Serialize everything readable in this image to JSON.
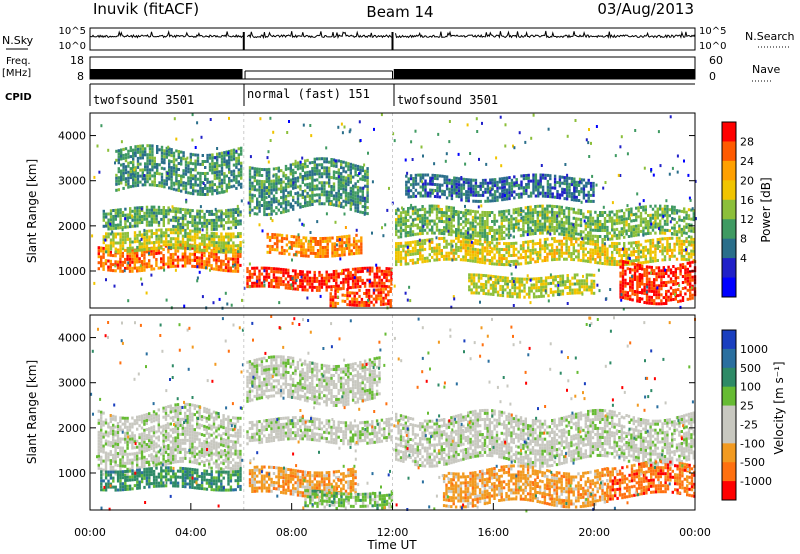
{
  "header": {
    "station": "Inuvik (fitACF)",
    "beam": "Beam 14",
    "date": "03/Aug/2013"
  },
  "chart_data": [
    {
      "type": "line",
      "name": "N.Sky",
      "left_label": "N.Sky",
      "right_label": "N.Search",
      "left_ticks": [
        "10^5",
        "10^0"
      ],
      "right_ticks": [
        "10^5",
        "10^0"
      ],
      "gaps_hours": [
        [
          6.1,
          6.15
        ],
        [
          12.0,
          12.05
        ]
      ]
    },
    {
      "type": "line",
      "name": "Freq",
      "left_label_top": "Freq.",
      "left_label_bottom": "[MHz]",
      "right_label": "Nave",
      "left_ticks": [
        18,
        8
      ],
      "right_ticks": [
        60,
        0
      ],
      "gaps_hours": [
        [
          6.1,
          6.15
        ],
        [
          12.0,
          12.05
        ]
      ]
    },
    {
      "type": "table",
      "label": "CPID",
      "segments": [
        {
          "start": 0,
          "end": 6.1,
          "text": "twofsound 3501"
        },
        {
          "start": 6.1,
          "end": 12.0,
          "text": "normal (fast) 151"
        },
        {
          "start": 12.0,
          "end": 24,
          "text": "twofsound 3501"
        }
      ]
    },
    {
      "type": "heatmap",
      "name": "power",
      "ylabel": "Slant Range [km]",
      "ylim": [
        180,
        4500
      ],
      "yticks": [
        1000,
        2000,
        3000,
        4000
      ],
      "xlim": [
        0,
        24
      ],
      "colorbar": {
        "label": "Power [dB]",
        "ticks": [
          28,
          24,
          20,
          16,
          12,
          8,
          4
        ],
        "colors": [
          "#ff0000",
          "#ff5a00",
          "#ffa000",
          "#f0c400",
          "#8cbf3a",
          "#3f9a62",
          "#2a6e8a",
          "#2020c8",
          "#0000ff"
        ]
      },
      "bands": [
        {
          "x0": 0.3,
          "x1": 6.0,
          "r0": 1050,
          "r1": 1550,
          "level": 0.85
        },
        {
          "x0": 0.5,
          "x1": 6.0,
          "r0": 1500,
          "r1": 1900,
          "level": 0.55
        },
        {
          "x0": 0.5,
          "x1": 6.0,
          "r0": 2000,
          "r1": 2400,
          "level": 0.4
        },
        {
          "x0": 1.0,
          "x1": 6.0,
          "r0": 2800,
          "r1": 3700,
          "level": 0.35
        },
        {
          "x0": 6.2,
          "x1": 12.0,
          "r0": 650,
          "r1": 1050,
          "level": 0.95
        },
        {
          "x0": 7.0,
          "x1": 10.8,
          "r0": 1400,
          "r1": 1800,
          "level": 0.8
        },
        {
          "x0": 9.5,
          "x1": 12.0,
          "r0": 250,
          "r1": 650,
          "level": 0.9
        },
        {
          "x0": 6.3,
          "x1": 11.0,
          "r0": 2400,
          "r1": 3400,
          "level": 0.35
        },
        {
          "x0": 12.1,
          "x1": 24.0,
          "r0": 1200,
          "r1": 1700,
          "level": 0.6
        },
        {
          "x0": 12.1,
          "x1": 24.0,
          "r0": 1800,
          "r1": 2400,
          "level": 0.45
        },
        {
          "x0": 12.5,
          "x1": 20.0,
          "r0": 2600,
          "r1": 3100,
          "level": 0.25
        },
        {
          "x0": 15.0,
          "x1": 20.0,
          "r0": 500,
          "r1": 900,
          "level": 0.55
        },
        {
          "x0": 21.0,
          "x1": 24.0,
          "r0": 400,
          "r1": 1200,
          "level": 0.95
        }
      ]
    },
    {
      "type": "heatmap",
      "name": "velocity",
      "ylabel": "Slant Range [km]",
      "xlabel": "Time UT",
      "ylim": [
        180,
        4500
      ],
      "yticks": [
        1000,
        2000,
        3000,
        4000
      ],
      "xlim": [
        0,
        24
      ],
      "xticks": [
        "00:00",
        "04:00",
        "08:00",
        "12:00",
        "16:00",
        "20:00",
        "00:00"
      ],
      "colorbar": {
        "label": "Velocity [m s⁻¹]",
        "ticks": [
          1000,
          500,
          100,
          25,
          -25,
          -100,
          -500,
          -1000
        ],
        "colors": [
          "#1a3fbf",
          "#2a6f9f",
          "#2e8a66",
          "#66bb33",
          "#c8c8c0",
          "#c8c8c0",
          "#f29a20",
          "#ff7010",
          "#ff0000"
        ]
      },
      "bands": [
        {
          "x0": 0.3,
          "x1": 6.0,
          "r0": 1100,
          "r1": 2400,
          "level": 4
        },
        {
          "x0": 0.4,
          "x1": 6.0,
          "r0": 700,
          "r1": 1100,
          "level": 2
        },
        {
          "x0": 6.2,
          "x1": 12.0,
          "r0": 1700,
          "r1": 2200,
          "level": 4
        },
        {
          "x0": 6.2,
          "x1": 11.5,
          "r0": 2600,
          "r1": 3500,
          "level": 4
        },
        {
          "x0": 6.3,
          "x1": 10.5,
          "r0": 550,
          "r1": 1100,
          "level": 6
        },
        {
          "x0": 8.5,
          "x1": 12.0,
          "r0": 250,
          "r1": 600,
          "level": 3
        },
        {
          "x0": 12.1,
          "x1": 24.0,
          "r0": 1300,
          "r1": 2300,
          "level": 4
        },
        {
          "x0": 14.0,
          "x1": 20.5,
          "r0": 350,
          "r1": 1100,
          "level": 6
        },
        {
          "x0": 20.5,
          "x1": 24.0,
          "r0": 500,
          "r1": 1200,
          "level": 7
        }
      ]
    }
  ]
}
